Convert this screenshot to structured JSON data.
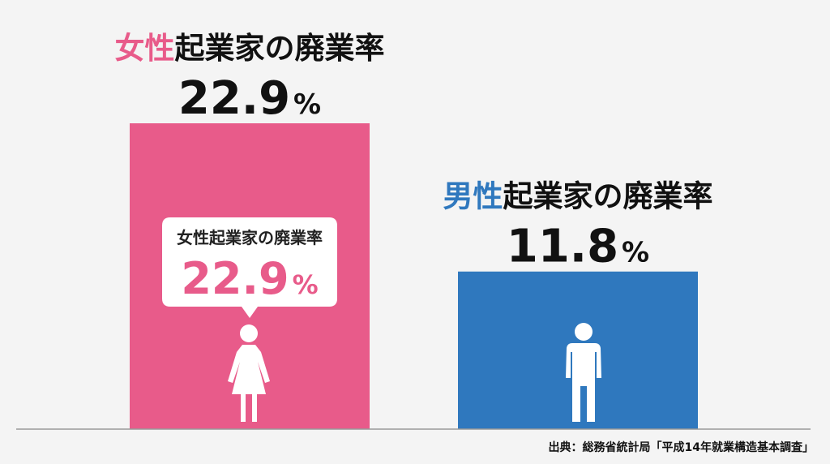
{
  "chart_data": {
    "type": "bar",
    "categories": [
      "女性",
      "男性"
    ],
    "values": [
      22.9,
      11.8
    ],
    "unit": "%",
    "bar_titles": [
      {
        "prefix": "女性",
        "rest": "起業家の廃業率"
      },
      {
        "prefix": "男性",
        "rest": "起業家の廃業率"
      }
    ],
    "callout": {
      "title": "女性起業家の廃業率",
      "value": "22.9",
      "unit": "%"
    },
    "icons": [
      "female-person-icon",
      "male-person-icon"
    ],
    "colors": {
      "female": "#e85b8a",
      "male": "#2f78be",
      "text": "#111111"
    },
    "source": "出典：総務省統計局「平成14年就業構造基本調査」",
    "ylim": [
      0,
      25
    ],
    "grid": false,
    "legend": "none"
  }
}
